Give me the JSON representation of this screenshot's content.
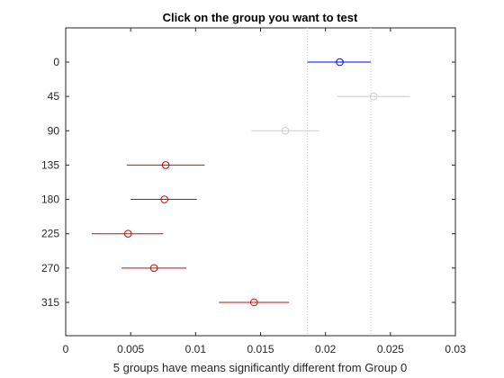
{
  "chart_data": {
    "type": "scatter",
    "title": "Click on the group you want to test",
    "xlabel": "5 groups have means significantly different from Group 0",
    "ylabel": "",
    "xlim": [
      0,
      0.03
    ],
    "x_ticks": [
      0,
      0.005,
      0.01,
      0.015,
      0.02,
      0.025,
      0.03
    ],
    "x_tick_labels": [
      "0",
      "0.005",
      "0.01",
      "0.015",
      "0.02",
      "0.025",
      "0.03"
    ],
    "categories": [
      "0",
      "45",
      "90",
      "135",
      "180",
      "225",
      "270",
      "315"
    ],
    "grid": false,
    "reference_lines": [
      0.0186,
      0.0235
    ],
    "groups": [
      {
        "label": "0",
        "mean": 0.0211,
        "lower": 0.0186,
        "upper": 0.0235,
        "color": "#0000ff"
      },
      {
        "label": "45",
        "mean": 0.0237,
        "lower": 0.0209,
        "upper": 0.0265,
        "color": "#cccccc"
      },
      {
        "label": "90",
        "mean": 0.0169,
        "lower": 0.0143,
        "upper": 0.0195,
        "color": "#cccccc"
      },
      {
        "label": "135",
        "mean": 0.0077,
        "lower": 0.0047,
        "upper": 0.0107,
        "color": "#dd0000"
      },
      {
        "label": "180",
        "mean": 0.0076,
        "lower": 0.005,
        "upper": 0.0101,
        "color": "#dd0000"
      },
      {
        "label": "225",
        "mean": 0.0048,
        "lower": 0.002,
        "upper": 0.0075,
        "color": "#dd0000"
      },
      {
        "label": "270",
        "mean": 0.0068,
        "lower": 0.0043,
        "upper": 0.0093,
        "color": "#dd0000"
      },
      {
        "label": "315",
        "mean": 0.0145,
        "lower": 0.0118,
        "upper": 0.0172,
        "color": "#dd0000"
      }
    ]
  }
}
